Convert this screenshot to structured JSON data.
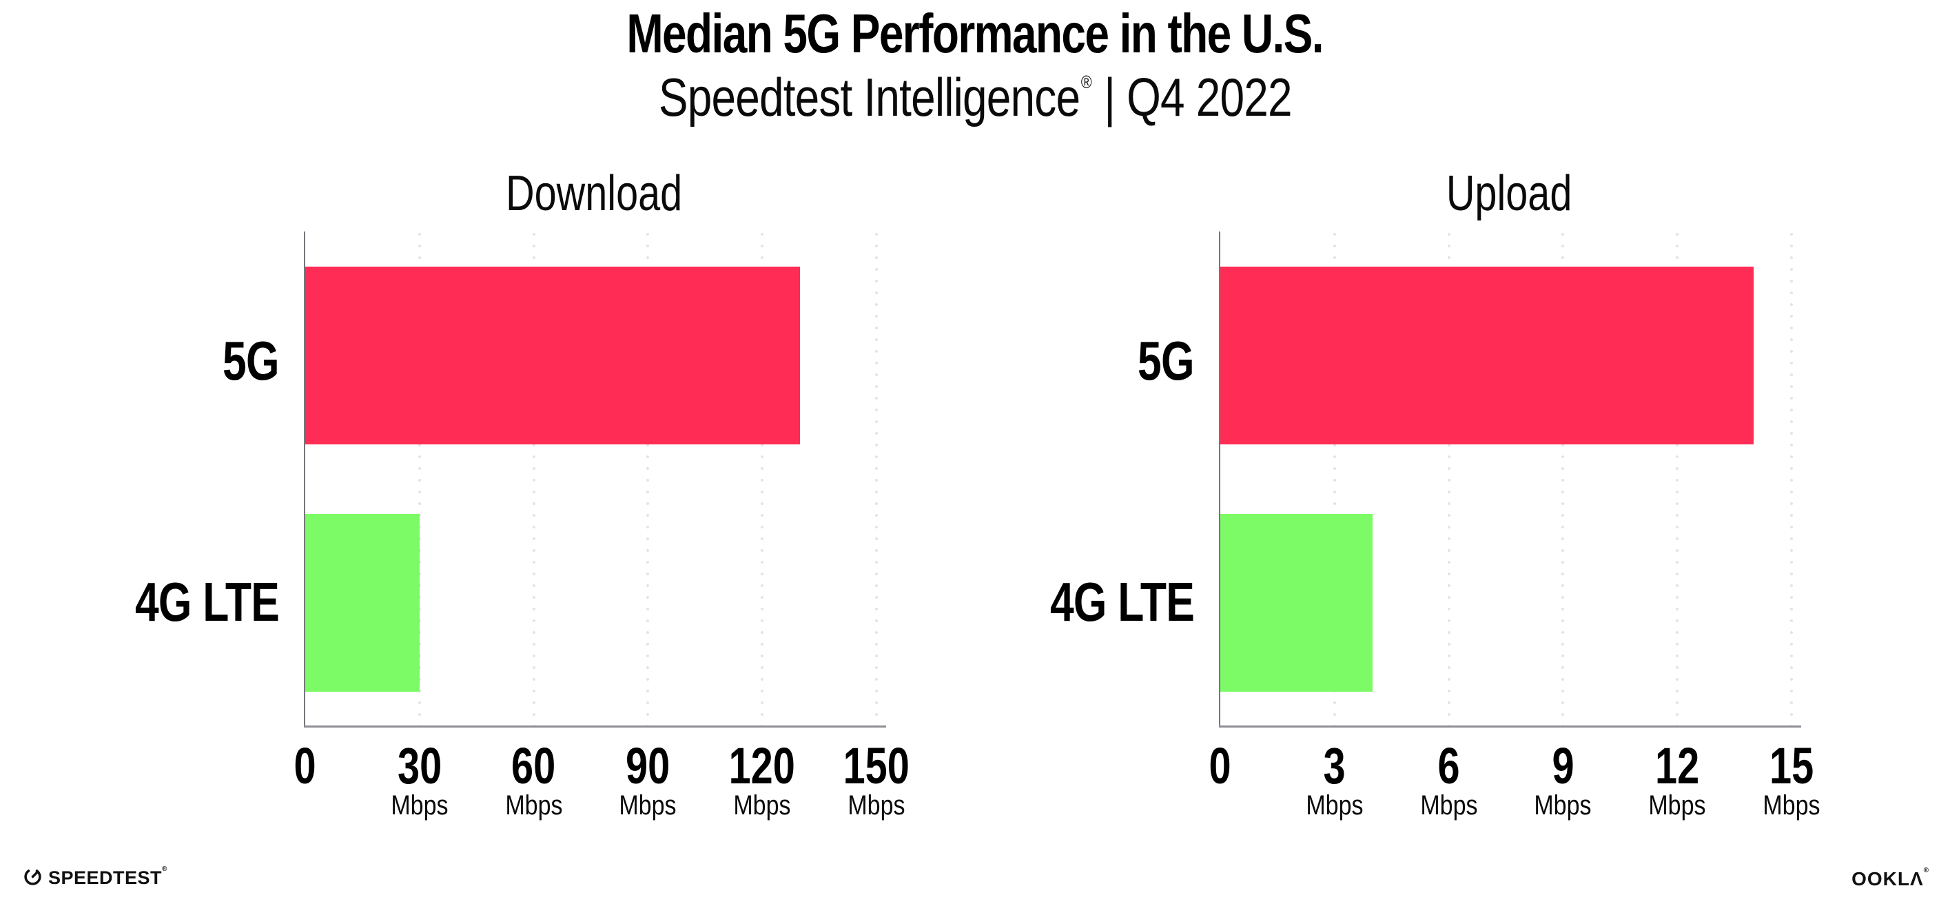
{
  "page": {
    "title": "Median 5G Performance in the U.S.",
    "subtitle_brand": "Speedtest Intelligence",
    "subtitle_reg": "®",
    "subtitle_tail": "| Q4 2022"
  },
  "colors": {
    "bar_5g": "#ff2d55",
    "bar_4g_lte": "#7dfb66",
    "axis_line": "#8e8e94",
    "gridline_dots": "#e3e3eb",
    "text": "#000000"
  },
  "chart_data": [
    {
      "type": "bar",
      "orientation": "horizontal",
      "title": "Download",
      "categories": [
        "5G",
        "4G LTE"
      ],
      "values": [
        130,
        30
      ],
      "unit": "Mbps",
      "xlabel": "",
      "ylabel": "",
      "xlim": [
        0,
        150
      ],
      "ticks": [
        0,
        30,
        60,
        90,
        120,
        150
      ],
      "grid": "dotted-vertical-gridlines",
      "legend": "none",
      "bar_colors": [
        "#ff2d55",
        "#7dfb66"
      ]
    },
    {
      "type": "bar",
      "orientation": "horizontal",
      "title": "Upload",
      "categories": [
        "5G",
        "4G LTE"
      ],
      "values": [
        14,
        4
      ],
      "unit": "Mbps",
      "xlabel": "",
      "ylabel": "",
      "xlim": [
        0,
        15
      ],
      "ticks": [
        0,
        3,
        6,
        9,
        12,
        15
      ],
      "grid": "dotted-vertical-gridlines",
      "legend": "none",
      "bar_colors": [
        "#ff2d55",
        "#7dfb66"
      ]
    }
  ],
  "footer": {
    "speedtest_label": "SPEEDTEST",
    "speedtest_reg": "®",
    "speedtest_icon": "gauge-icon",
    "ookla_label": "OOKLΛ",
    "ookla_reg": "®"
  }
}
